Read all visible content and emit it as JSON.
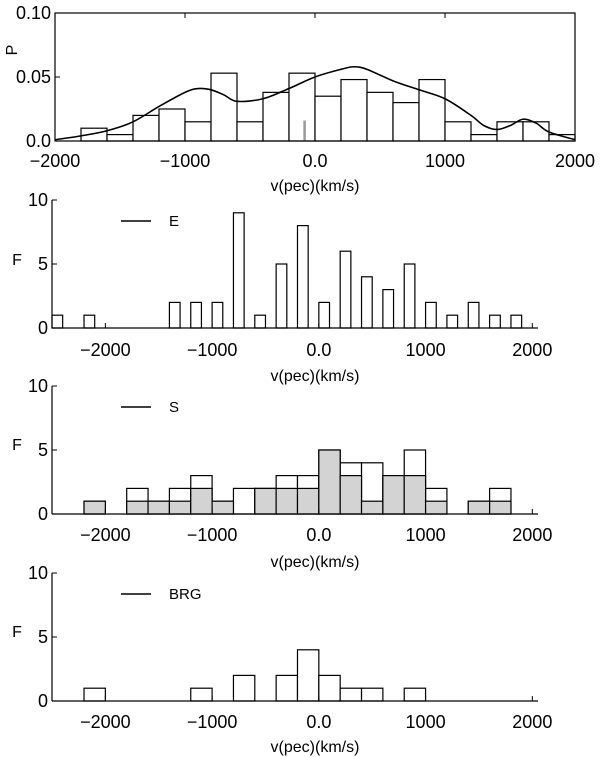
{
  "chart_data": [
    {
      "type": "bar",
      "panel": "top",
      "xlabel": "v(pec)(km/s)",
      "ylabel": "P",
      "xlim": [
        -2000,
        2000
      ],
      "ylim": [
        0,
        0.1
      ],
      "xticks": [
        -2000,
        -1000,
        0,
        1000,
        2000
      ],
      "xtick_labels": [
        "−2000",
        "−1000",
        "0.0",
        "1000",
        "2000"
      ],
      "yticks": [
        0,
        0.05,
        0.1
      ],
      "ytick_labels": [
        "0.0",
        "0.05",
        "0.10"
      ],
      "bin_edges": [
        -2000,
        -1800,
        -1600,
        -1400,
        -1200,
        -1000,
        -800,
        -600,
        -400,
        -200,
        0,
        200,
        400,
        600,
        800,
        1000,
        1200,
        1400,
        1600,
        1800,
        2000
      ],
      "bin_values": [
        0,
        0.01,
        0.005,
        0.02,
        0.025,
        0.015,
        0.053,
        0.015,
        0.038,
        0.053,
        0.035,
        0.048,
        0.038,
        0.03,
        0.048,
        0.015,
        0.005,
        0.015,
        0.015,
        0.005
      ],
      "bar_fill": "#ffffff",
      "marker": {
        "x": -80,
        "y": 0.016,
        "color": "#999999"
      },
      "curve": {
        "x": [
          -2000,
          -1800,
          -1600,
          -1400,
          -1200,
          -1000,
          -900,
          -800,
          -700,
          -600,
          -400,
          -200,
          0,
          200,
          300,
          400,
          600,
          800,
          1000,
          1200,
          1300,
          1400,
          1500,
          1600,
          1700,
          1800,
          2000
        ],
        "y": [
          0.001,
          0.004,
          0.008,
          0.015,
          0.027,
          0.038,
          0.041,
          0.04,
          0.036,
          0.031,
          0.033,
          0.041,
          0.05,
          0.056,
          0.058,
          0.056,
          0.047,
          0.04,
          0.033,
          0.02,
          0.012,
          0.009,
          0.012,
          0.017,
          0.014,
          0.007,
          0.001
        ]
      }
    },
    {
      "type": "bar",
      "panel": "E",
      "xlabel": "v(pec)(km/s)",
      "ylabel": "F",
      "legend": [
        "E"
      ],
      "xlim": [
        -2500,
        2400
      ],
      "ylim": [
        0,
        10
      ],
      "xticks": [
        -2000,
        -1000,
        0,
        1000,
        2000
      ],
      "xtick_labels": [
        "−2000",
        "−1000",
        "0.0",
        "1000",
        "2000"
      ],
      "yticks": [
        0,
        5,
        10
      ],
      "ytick_labels": [
        "0",
        "5",
        "10"
      ],
      "bin_edges": [
        -2500,
        -2400,
        -2300,
        -2200,
        -2100,
        -2000,
        -1900,
        -1800,
        -1700,
        -1600,
        -1500,
        -1400,
        -1300,
        -1200,
        -1100,
        -1000,
        -900,
        -800,
        -700,
        -600,
        -500,
        -400,
        -300,
        -200,
        -100,
        0,
        100,
        200,
        300,
        400,
        500,
        600,
        700,
        800,
        900,
        1000,
        1100,
        1200,
        1300,
        1400,
        1500,
        1600,
        1700,
        1800,
        1900,
        2000
      ],
      "bin_values": [
        1,
        0,
        0,
        1,
        0,
        0,
        0,
        0,
        0,
        0,
        0,
        2,
        0,
        2,
        0,
        2,
        0,
        9,
        0,
        1,
        0,
        5,
        0,
        8,
        0,
        2,
        0,
        6,
        0,
        4,
        0,
        3,
        0,
        5,
        0,
        2,
        0,
        1,
        0,
        2,
        0,
        1,
        0,
        1,
        0
      ],
      "bar_fill": "#ffffff"
    },
    {
      "type": "bar",
      "panel": "S",
      "xlabel": "v(pec)(km/s)",
      "ylabel": "F",
      "legend": [
        "S"
      ],
      "xlim": [
        -2500,
        2400
      ],
      "ylim": [
        0,
        10
      ],
      "xticks": [
        -2000,
        -1000,
        0,
        1000,
        2000
      ],
      "xtick_labels": [
        "−2000",
        "−1000",
        "0.0",
        "1000",
        "2000"
      ],
      "yticks": [
        0,
        5,
        10
      ],
      "ytick_labels": [
        "0",
        "5",
        "10"
      ],
      "bin_edges": [
        -2200,
        -2000,
        -1800,
        -1600,
        -1400,
        -1200,
        -1000,
        -800,
        -600,
        -400,
        -200,
        0,
        200,
        400,
        600,
        800,
        1000,
        1200,
        1400,
        1600,
        1800
      ],
      "series": [
        {
          "values": [
            1,
            0,
            2,
            1,
            2,
            3,
            1,
            2,
            2,
            3,
            3,
            5,
            4,
            4,
            3,
            5,
            2,
            0,
            1,
            2
          ],
          "fill": "#ffffff"
        },
        {
          "values": [
            1,
            0,
            1,
            1,
            1,
            2,
            1,
            0,
            2,
            2,
            2,
            5,
            3,
            1,
            3,
            3,
            1,
            0,
            1,
            1
          ],
          "fill": "#d3d3d3"
        }
      ]
    },
    {
      "type": "bar",
      "panel": "BRG",
      "xlabel": "v(pec)(km/s)",
      "ylabel": "F",
      "legend": [
        "BRG"
      ],
      "xlim": [
        -2500,
        2400
      ],
      "ylim": [
        0,
        10
      ],
      "xticks": [
        -2000,
        -1000,
        0,
        1000,
        2000
      ],
      "xtick_labels": [
        "−2000",
        "−1000",
        "0.0",
        "1000",
        "2000"
      ],
      "yticks": [
        0,
        5,
        10
      ],
      "ytick_labels": [
        "0",
        "5",
        "10"
      ],
      "bin_edges": [
        -2200,
        -2000,
        -1800,
        -1600,
        -1400,
        -1200,
        -1000,
        -800,
        -600,
        -400,
        -200,
        0,
        200,
        400,
        600,
        800,
        1000
      ],
      "bin_values": [
        1,
        0,
        0,
        0,
        0,
        1,
        0,
        2,
        0,
        2,
        4,
        2,
        1,
        1,
        0,
        1
      ],
      "bar_fill": "#ffffff"
    }
  ]
}
